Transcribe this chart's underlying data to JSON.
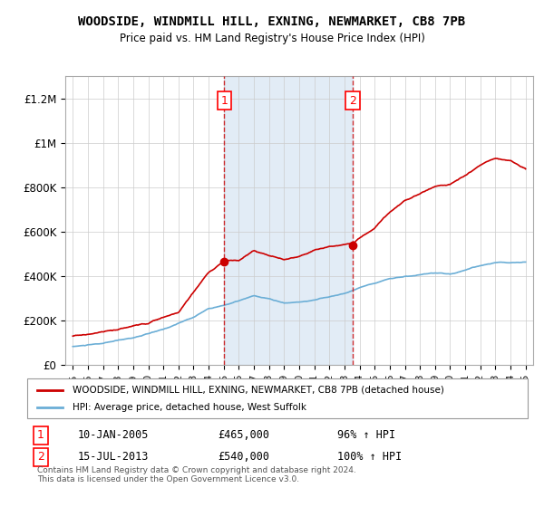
{
  "title": "WOODSIDE, WINDMILL HILL, EXNING, NEWMARKET, CB8 7PB",
  "subtitle": "Price paid vs. HM Land Registry's House Price Index (HPI)",
  "xlim": [
    1994.5,
    2025.5
  ],
  "ylim": [
    0,
    1300000
  ],
  "yticks": [
    0,
    200000,
    400000,
    600000,
    800000,
    1000000,
    1200000
  ],
  "ytick_labels": [
    "£0",
    "£200K",
    "£400K",
    "£600K",
    "£800K",
    "£1M",
    "£1.2M"
  ],
  "xticks": [
    1995,
    1996,
    1997,
    1998,
    1999,
    2000,
    2001,
    2002,
    2003,
    2004,
    2005,
    2006,
    2007,
    2008,
    2009,
    2010,
    2011,
    2012,
    2013,
    2014,
    2015,
    2016,
    2017,
    2018,
    2019,
    2020,
    2021,
    2022,
    2023,
    2024,
    2025
  ],
  "sale1_x": 2005.03,
  "sale1_y": 465000,
  "sale2_x": 2013.54,
  "sale2_y": 540000,
  "vline1_x": 2005.03,
  "vline2_x": 2013.54,
  "hpi_line_color": "#6baed6",
  "price_line_color": "#cc0000",
  "vline_color": "#cc0000",
  "shade_color": "#c6dbef",
  "background_color": "#ffffff",
  "grid_color": "#cccccc",
  "legend_entry1": "WOODSIDE, WINDMILL HILL, EXNING, NEWMARKET, CB8 7PB (detached house)",
  "legend_entry2": "HPI: Average price, detached house, West Suffolk",
  "annotation1_date": "10-JAN-2005",
  "annotation1_price": "£465,000",
  "annotation1_hpi": "96% ↑ HPI",
  "annotation2_date": "15-JUL-2013",
  "annotation2_price": "£540,000",
  "annotation2_hpi": "100% ↑ HPI",
  "footer": "Contains HM Land Registry data © Crown copyright and database right 2024.\nThis data is licensed under the Open Government Licence v3.0.",
  "hpi_key_years": [
    1995,
    1997,
    1999,
    2001,
    2003,
    2004,
    2005,
    2006,
    2007,
    2008,
    2009,
    2010,
    2011,
    2012,
    2013,
    2014,
    2015,
    2016,
    2017,
    2018,
    2019,
    2020,
    2021,
    2022,
    2023,
    2024,
    2025
  ],
  "hpi_key_vals": [
    83000,
    95000,
    120000,
    155000,
    210000,
    250000,
    265000,
    285000,
    305000,
    290000,
    270000,
    275000,
    285000,
    300000,
    315000,
    340000,
    365000,
    385000,
    395000,
    400000,
    405000,
    400000,
    420000,
    440000,
    455000,
    455000,
    460000
  ],
  "prop_key_years": [
    1995,
    1998,
    2000,
    2002,
    2004,
    2005.03,
    2006,
    2007,
    2008,
    2009,
    2010,
    2011,
    2012,
    2013.54,
    2014,
    2015,
    2016,
    2017,
    2018,
    2019,
    2020,
    2021,
    2022,
    2023,
    2024,
    2025
  ],
  "prop_key_vals": [
    130000,
    155000,
    185000,
    230000,
    415000,
    465000,
    470000,
    510000,
    490000,
    470000,
    480000,
    510000,
    525000,
    540000,
    565000,
    610000,
    680000,
    730000,
    770000,
    800000,
    810000,
    850000,
    900000,
    930000,
    920000,
    880000
  ]
}
